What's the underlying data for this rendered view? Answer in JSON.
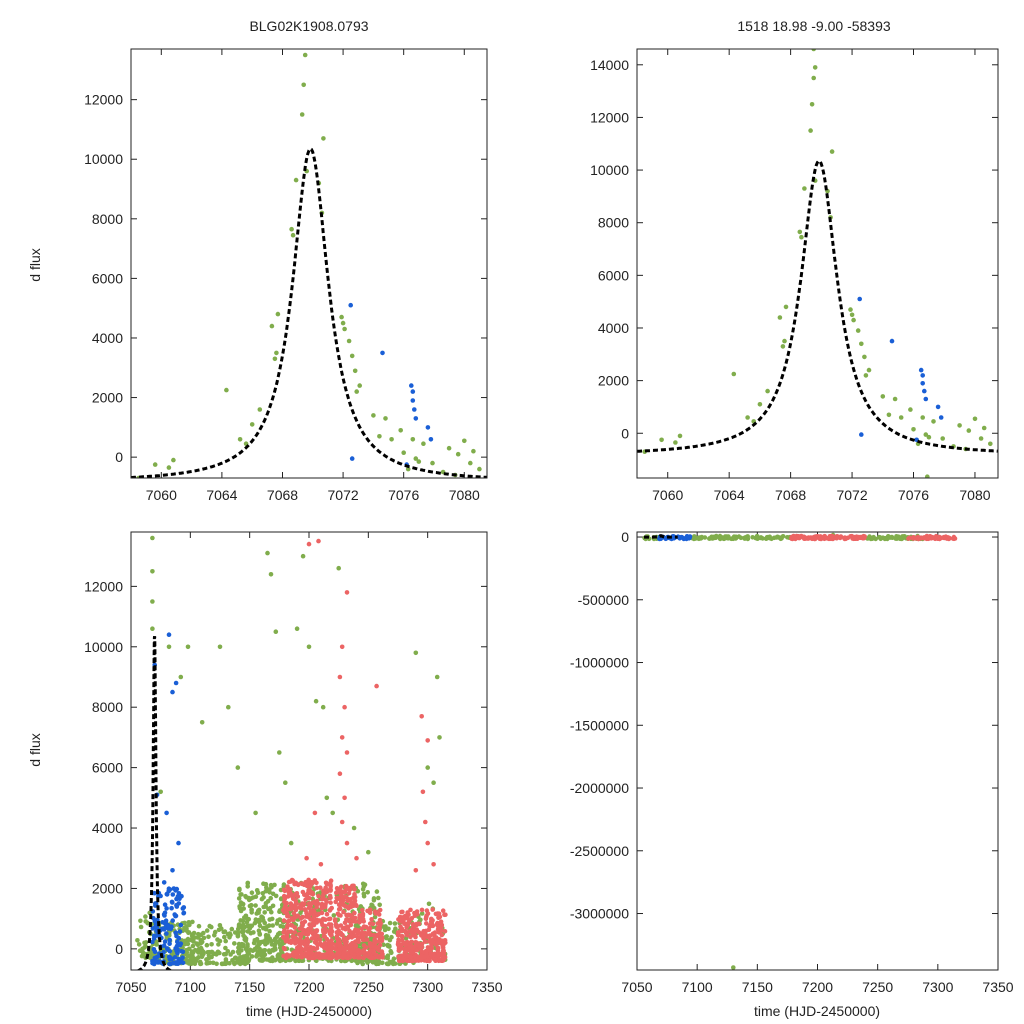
{
  "figure": {
    "title_left": "BLG02K1908.0793",
    "title_right": "1518  18.98  -9.00  -58393",
    "ylabel": "d flux",
    "xlabel": "time (HJD-2450000)"
  },
  "colors": {
    "fit_curve": "#000000",
    "green": "#80ad4c",
    "blue": "#1a5fd6",
    "red": "#ec6464"
  },
  "chart_data": [
    {
      "type": "scatter",
      "panel": "top-left",
      "title": "BLG02K1908.0793",
      "ylabel": "d flux",
      "xlabel": "",
      "xlim": [
        7058,
        7081.5
      ],
      "ylim": [
        -700,
        13700
      ],
      "xticks": [
        7060,
        7064,
        7068,
        7072,
        7076,
        7080
      ],
      "yticks": [
        0,
        2000,
        4000,
        6000,
        8000,
        10000,
        12000
      ],
      "model": {
        "t0": 7069.85,
        "peak": 10350,
        "base": -850,
        "width": 1.45
      },
      "series": [
        {
          "name": "green",
          "points": [
            [
              7058.5,
              -700
            ],
            [
              7059.6,
              -250
            ],
            [
              7060.5,
              -350
            ],
            [
              7060.8,
              -100
            ],
            [
              7064.3,
              2250
            ],
            [
              7065.2,
              600
            ],
            [
              7065.6,
              450
            ],
            [
              7066.0,
              1100
            ],
            [
              7066.5,
              1600
            ],
            [
              7067.3,
              4400
            ],
            [
              7067.5,
              3300
            ],
            [
              7067.6,
              3500
            ],
            [
              7067.7,
              4800
            ],
            [
              7068.6,
              7650
            ],
            [
              7068.7,
              7450
            ],
            [
              7068.9,
              9300
            ],
            [
              7069.3,
              11500
            ],
            [
              7069.4,
              12500
            ],
            [
              7069.5,
              13500
            ],
            [
              7069.6,
              9600
            ],
            [
              7070.4,
              9200
            ],
            [
              7070.6,
              8200
            ],
            [
              7070.7,
              10700
            ],
            [
              7071.9,
              4700
            ],
            [
              7072.0,
              4500
            ],
            [
              7072.1,
              4300
            ],
            [
              7072.4,
              3900
            ],
            [
              7072.6,
              3400
            ],
            [
              7072.8,
              2900
            ],
            [
              7072.9,
              2200
            ],
            [
              7073.1,
              2400
            ],
            [
              7074.0,
              1400
            ],
            [
              7074.4,
              700
            ],
            [
              7074.8,
              1300
            ],
            [
              7075.2,
              600
            ],
            [
              7075.8,
              900
            ],
            [
              7076.0,
              150
            ],
            [
              7076.3,
              -400
            ],
            [
              7076.6,
              600
            ],
            [
              7076.8,
              -50
            ],
            [
              7077.0,
              -150
            ],
            [
              7077.3,
              450
            ],
            [
              7077.9,
              -200
            ],
            [
              7078.6,
              -500
            ],
            [
              7079.0,
              300
            ],
            [
              7079.4,
              -600
            ],
            [
              7079.6,
              100
            ],
            [
              7080.0,
              550
            ],
            [
              7080.4,
              -200
            ],
            [
              7080.6,
              200
            ],
            [
              7081.0,
              -400
            ]
          ]
        },
        {
          "name": "blue",
          "points": [
            [
              7072.5,
              5100
            ],
            [
              7072.6,
              -50
            ],
            [
              7074.6,
              3500
            ],
            [
              7076.2,
              -250
            ],
            [
              7076.5,
              2400
            ],
            [
              7076.6,
              2200
            ],
            [
              7076.6,
              1900
            ],
            [
              7076.7,
              1600
            ],
            [
              7076.8,
              1300
            ],
            [
              7077.6,
              1000
            ],
            [
              7077.8,
              600
            ]
          ]
        }
      ]
    },
    {
      "type": "scatter",
      "panel": "top-right",
      "title": "1518  18.98  -9.00  -58393",
      "ylabel": "",
      "xlabel": "",
      "xlim": [
        7058,
        7081.5
      ],
      "ylim": [
        -1700,
        14600
      ],
      "xticks": [
        7060,
        7064,
        7068,
        7072,
        7076,
        7080
      ],
      "yticks": [
        0,
        2000,
        4000,
        6000,
        8000,
        10000,
        12000,
        14000
      ],
      "model": {
        "t0": 7069.85,
        "peak": 10350,
        "base": -850,
        "width": 1.45
      },
      "series": [
        {
          "name": "green",
          "points": [
            [
              7058.5,
              -700
            ],
            [
              7059.6,
              -250
            ],
            [
              7060.5,
              -350
            ],
            [
              7060.8,
              -100
            ],
            [
              7064.3,
              2250
            ],
            [
              7065.2,
              600
            ],
            [
              7065.6,
              450
            ],
            [
              7066.0,
              1100
            ],
            [
              7066.5,
              1600
            ],
            [
              7067.3,
              4400
            ],
            [
              7067.5,
              3300
            ],
            [
              7067.6,
              3500
            ],
            [
              7067.7,
              4800
            ],
            [
              7068.6,
              7650
            ],
            [
              7068.7,
              7450
            ],
            [
              7068.9,
              9300
            ],
            [
              7069.3,
              11500
            ],
            [
              7069.4,
              12500
            ],
            [
              7069.5,
              13500
            ],
            [
              7069.5,
              14600
            ],
            [
              7069.6,
              13900
            ],
            [
              7069.6,
              9600
            ],
            [
              7070.4,
              9200
            ],
            [
              7070.6,
              8200
            ],
            [
              7070.7,
              10700
            ],
            [
              7071.9,
              4700
            ],
            [
              7072.0,
              4500
            ],
            [
              7072.1,
              4300
            ],
            [
              7072.4,
              3900
            ],
            [
              7072.6,
              3400
            ],
            [
              7072.8,
              2900
            ],
            [
              7072.9,
              2200
            ],
            [
              7073.1,
              2400
            ],
            [
              7074.0,
              1400
            ],
            [
              7074.4,
              700
            ],
            [
              7074.8,
              1300
            ],
            [
              7075.2,
              600
            ],
            [
              7075.8,
              900
            ],
            [
              7076.0,
              150
            ],
            [
              7076.3,
              -400
            ],
            [
              7076.6,
              600
            ],
            [
              7076.8,
              -50
            ],
            [
              7076.9,
              -1650
            ],
            [
              7077.0,
              -150
            ],
            [
              7077.3,
              450
            ],
            [
              7077.9,
              -200
            ],
            [
              7078.6,
              -500
            ],
            [
              7079.0,
              300
            ],
            [
              7079.4,
              -600
            ],
            [
              7079.6,
              100
            ],
            [
              7080.0,
              550
            ],
            [
              7080.4,
              -200
            ],
            [
              7080.6,
              200
            ],
            [
              7081.0,
              -400
            ]
          ]
        },
        {
          "name": "blue",
          "points": [
            [
              7072.5,
              5100
            ],
            [
              7072.6,
              -50
            ],
            [
              7074.6,
              3500
            ],
            [
              7076.2,
              -250
            ],
            [
              7076.5,
              2400
            ],
            [
              7076.6,
              2200
            ],
            [
              7076.6,
              1900
            ],
            [
              7076.7,
              1600
            ],
            [
              7076.8,
              1300
            ],
            [
              7077.6,
              1000
            ],
            [
              7077.8,
              600
            ]
          ]
        }
      ]
    },
    {
      "type": "scatter",
      "panel": "bottom-left",
      "title": "",
      "ylabel": "d flux",
      "xlabel": "time (HJD-2450000)",
      "xlim": [
        7050,
        7350
      ],
      "ylim": [
        -700,
        13800
      ],
      "xticks": [
        7050,
        7100,
        7150,
        7200,
        7250,
        7300,
        7350
      ],
      "yticks": [
        0,
        2000,
        4000,
        6000,
        8000,
        10000,
        12000
      ],
      "model": {
        "t0": 7069.85,
        "peak": 10350,
        "base": -850,
        "width": 1.45
      },
      "series": [
        {
          "name": "green",
          "ranges": [
            [
              7055,
              7072,
              -300,
              1200,
              40
            ],
            [
              7070,
              7110,
              -500,
              900,
              140
            ],
            [
              7100,
              7150,
              -500,
              800,
              120
            ],
            [
              7140,
              7180,
              -400,
              2300,
              260
            ],
            [
              7180,
              7260,
              -400,
              2200,
              260
            ],
            [
              7240,
              7290,
              -500,
              1000,
              120
            ],
            [
              7290,
              7315,
              -400,
              1500,
              40
            ]
          ],
          "points": [
            [
              7068,
              13600
            ],
            [
              7068,
              12500
            ],
            [
              7068,
              11500
            ],
            [
              7068,
              10600
            ],
            [
              7075,
              5200
            ],
            [
              7082,
              10000
            ],
            [
              7092,
              9000
            ],
            [
              7098,
              10000
            ],
            [
              7110,
              7500
            ],
            [
              7125,
              10000
            ],
            [
              7132,
              8000
            ],
            [
              7140,
              6000
            ],
            [
              7165,
              13100
            ],
            [
              7168,
              12400
            ],
            [
              7172,
              10500
            ],
            [
              7175,
              6500
            ],
            [
              7180,
              5500
            ],
            [
              7190,
              10600
            ],
            [
              7195,
              13000
            ],
            [
              7200,
              10000
            ],
            [
              7206,
              8200
            ],
            [
              7212,
              8000
            ],
            [
              7220,
              4500
            ],
            [
              7225,
              12600
            ],
            [
              7238,
              4000
            ],
            [
              7250,
              3200
            ],
            [
              7290,
              9800
            ],
            [
              7300,
              6000
            ],
            [
              7305,
              5500
            ],
            [
              7308,
              9000
            ],
            [
              7310,
              7000
            ],
            [
              7155,
              4500
            ],
            [
              7185,
              3500
            ],
            [
              7215,
              5000
            ]
          ]
        },
        {
          "name": "blue",
          "ranges": [
            [
              7068,
              7095,
              -500,
              2000,
              140
            ]
          ],
          "points": [
            [
              7070,
              9400
            ],
            [
              7072,
              5100
            ],
            [
              7080,
              4500
            ],
            [
              7082,
              10400
            ],
            [
              7085,
              8500
            ],
            [
              7088,
              8800
            ],
            [
              7090,
              3500
            ],
            [
              7085,
              2600
            ],
            [
              7078,
              2200
            ]
          ]
        },
        {
          "name": "red",
          "ranges": [
            [
              7178,
              7220,
              -300,
              2300,
              400
            ],
            [
              7222,
              7240,
              -300,
              2100,
              200
            ],
            [
              7240,
              7262,
              -300,
              1300,
              120
            ],
            [
              7275,
              7315,
              -400,
              1300,
              340
            ]
          ],
          "points": [
            [
              7200,
              13400
            ],
            [
              7208,
              13500
            ],
            [
              7232,
              11800
            ],
            [
              7228,
              10000
            ],
            [
              7226,
              9000
            ],
            [
              7230,
              8000
            ],
            [
              7228,
              7000
            ],
            [
              7232,
              6500
            ],
            [
              7226,
              5800
            ],
            [
              7230,
              5000
            ],
            [
              7228,
              4200
            ],
            [
              7232,
              3500
            ],
            [
              7198,
              3000
            ],
            [
              7205,
              4500
            ],
            [
              7210,
              2800
            ],
            [
              7240,
              3000
            ],
            [
              7257,
              8700
            ],
            [
              7295,
              7700
            ],
            [
              7300,
              6900
            ],
            [
              7296,
              5200
            ],
            [
              7298,
              4200
            ],
            [
              7300,
              3500
            ],
            [
              7305,
              2800
            ],
            [
              7290,
              2600
            ]
          ]
        }
      ]
    },
    {
      "type": "scatter",
      "panel": "bottom-right",
      "title": "",
      "ylabel": "",
      "xlabel": "time (HJD-2450000)",
      "xlim": [
        7050,
        7350
      ],
      "ylim": [
        -3450000,
        40000
      ],
      "xticks": [
        7050,
        7100,
        7150,
        7200,
        7250,
        7300,
        7350
      ],
      "yticks": [
        0,
        -500000,
        -1000000,
        -1500000,
        -2000000,
        -2500000,
        -3000000
      ],
      "ytick_labels": [
        "0",
        "-500000",
        "-1000000",
        "-1500000",
        "-2000000",
        "-2500000",
        "-3000000"
      ],
      "model": {
        "t0": 7069.85,
        "peak": 10350,
        "base": -850,
        "width": 1.45
      },
      "series": [
        {
          "name": "green",
          "ranges": [
            [
              7055,
              7070,
              -15000,
              8000,
              12
            ],
            [
              7095,
              7180,
              -15000,
              8000,
              80
            ],
            [
              7240,
              7290,
              -15000,
              8000,
              50
            ]
          ],
          "points": [
            [
              7130,
              -3430000
            ],
            [
              7213,
              15000
            ]
          ]
        },
        {
          "name": "blue",
          "ranges": [
            [
              7068,
              7095,
              -15000,
              8000,
              40
            ]
          ],
          "points": []
        },
        {
          "name": "red",
          "ranges": [
            [
              7178,
              7240,
              -15000,
              8000,
              100
            ],
            [
              7275,
              7315,
              -15000,
              8000,
              50
            ]
          ],
          "points": []
        }
      ]
    }
  ]
}
